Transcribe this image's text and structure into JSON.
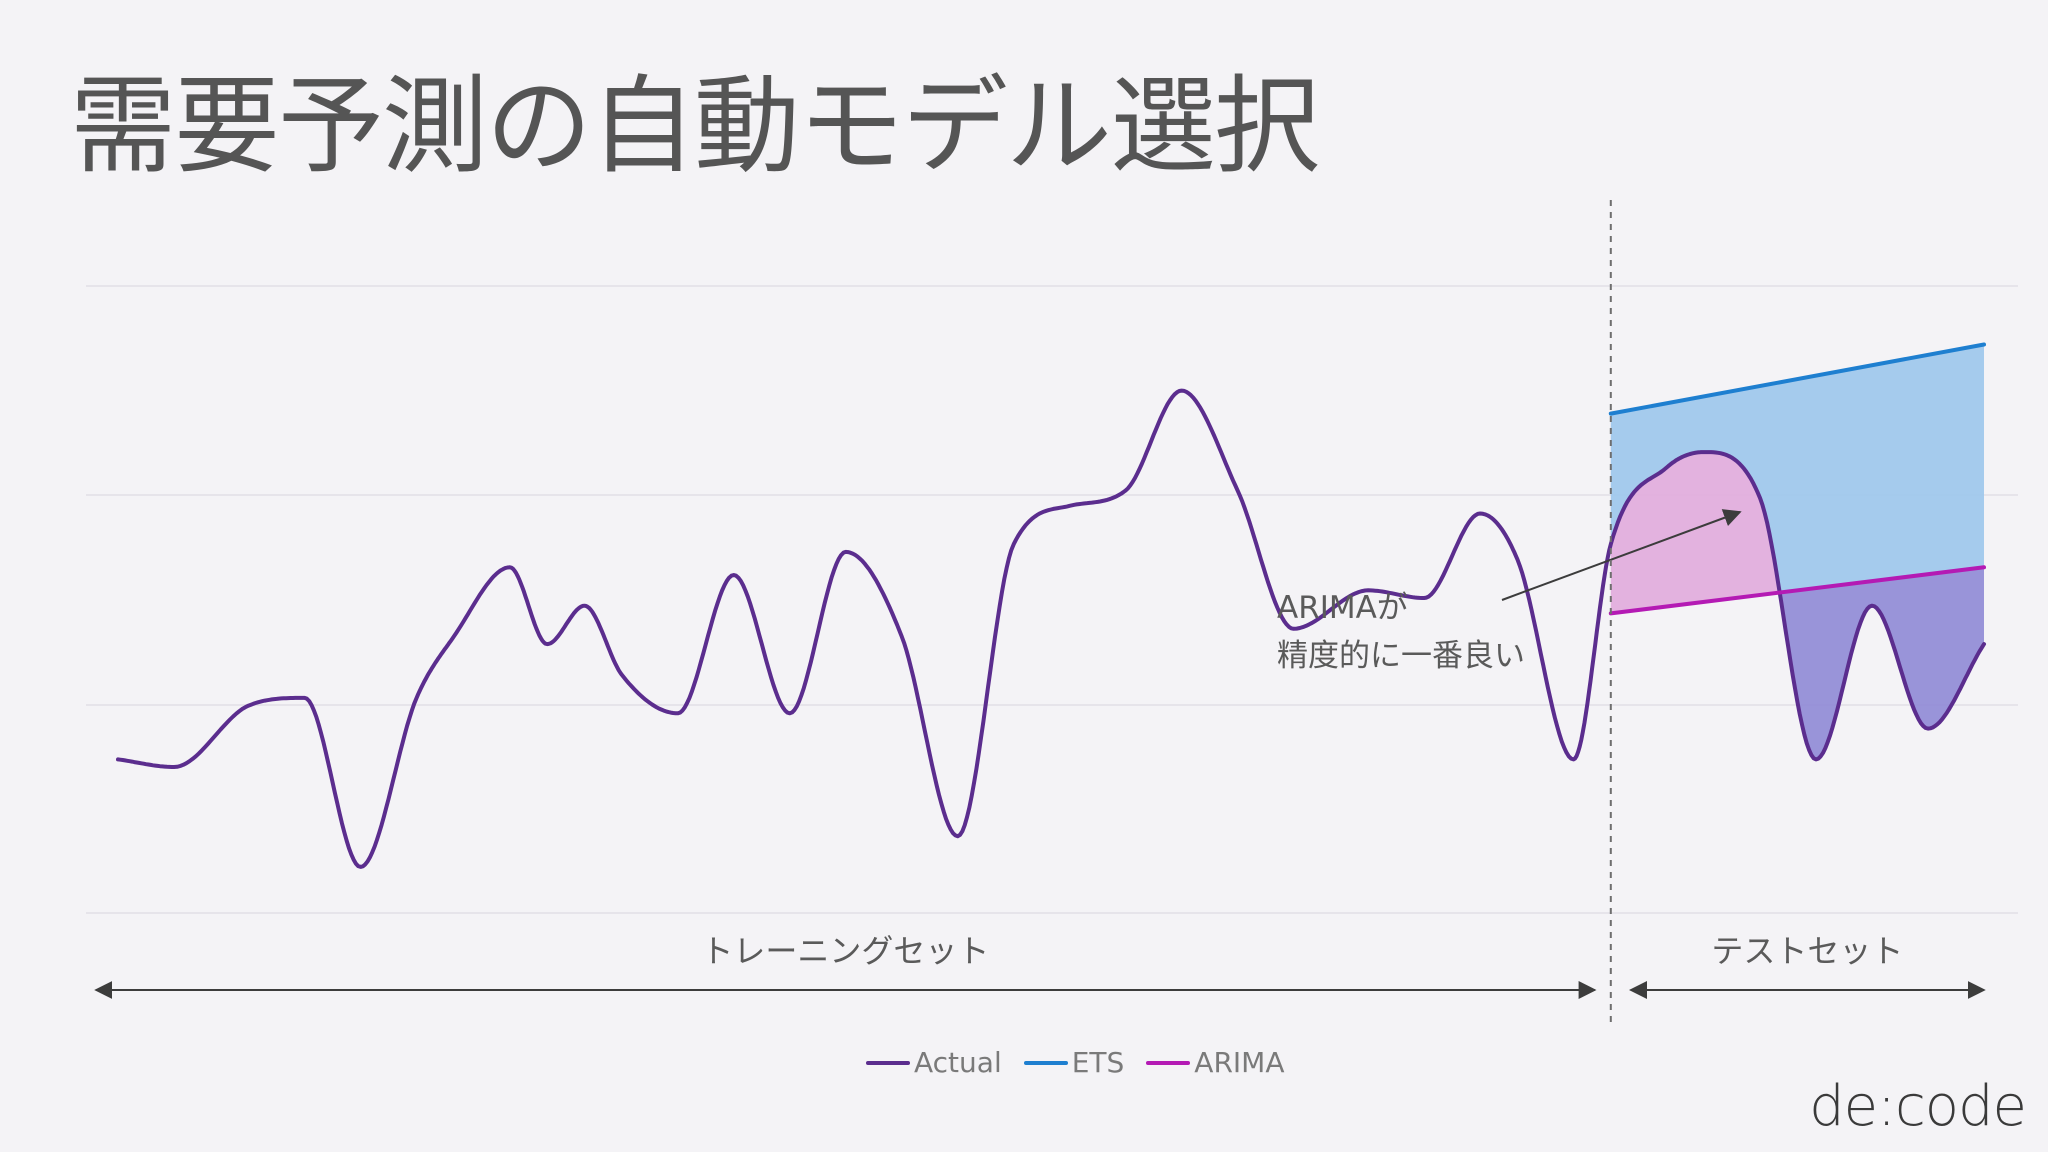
{
  "title": "需要予測の自動モデル選択",
  "brand": "de:code",
  "chart_data": {
    "type": "line",
    "legend": [
      "Actual",
      "ETS",
      "ARIMA"
    ],
    "legend_position": "bottom-center",
    "grid": true,
    "colors": {
      "actual": "#5b2d8e",
      "ets": "#1e7fd0",
      "arima": "#b41ab4",
      "ets_gap_fill": "#9cc7ec",
      "arima_gap_fill": "#e2aedd",
      "negative_gap_fill": "#8f89d6"
    },
    "segments": [
      {
        "label": "トレーニングセット"
      },
      {
        "label": "テストセット"
      }
    ],
    "annotation": "ARIMAが\n精度的に一番良い",
    "series": [
      {
        "name": "Actual",
        "x": [
          0,
          3,
          7,
          10,
          13,
          16,
          18,
          21,
          23,
          25,
          27,
          30,
          33,
          36,
          39,
          42,
          45,
          48,
          51,
          54,
          57,
          60,
          63,
          67,
          70,
          73,
          75,
          78,
          80,
          83,
          85,
          88,
          91,
          94,
          97,
          100
        ],
        "y": [
          20,
          19,
          27,
          28,
          6,
          28,
          36,
          45,
          35,
          40,
          31,
          26,
          44,
          26,
          47,
          36,
          10,
          48,
          53,
          55,
          68,
          55,
          37,
          42,
          41,
          52,
          46,
          20,
          48,
          58,
          60,
          54,
          20,
          40,
          24,
          35
        ]
      },
      {
        "name": "ETS",
        "x": [
          80,
          100
        ],
        "y": [
          65,
          74
        ]
      },
      {
        "name": "ARIMA",
        "x": [
          80,
          100
        ],
        "y": [
          39,
          45
        ]
      }
    ],
    "xlim": [
      0,
      100
    ],
    "ylim": [
      0,
      85
    ]
  }
}
